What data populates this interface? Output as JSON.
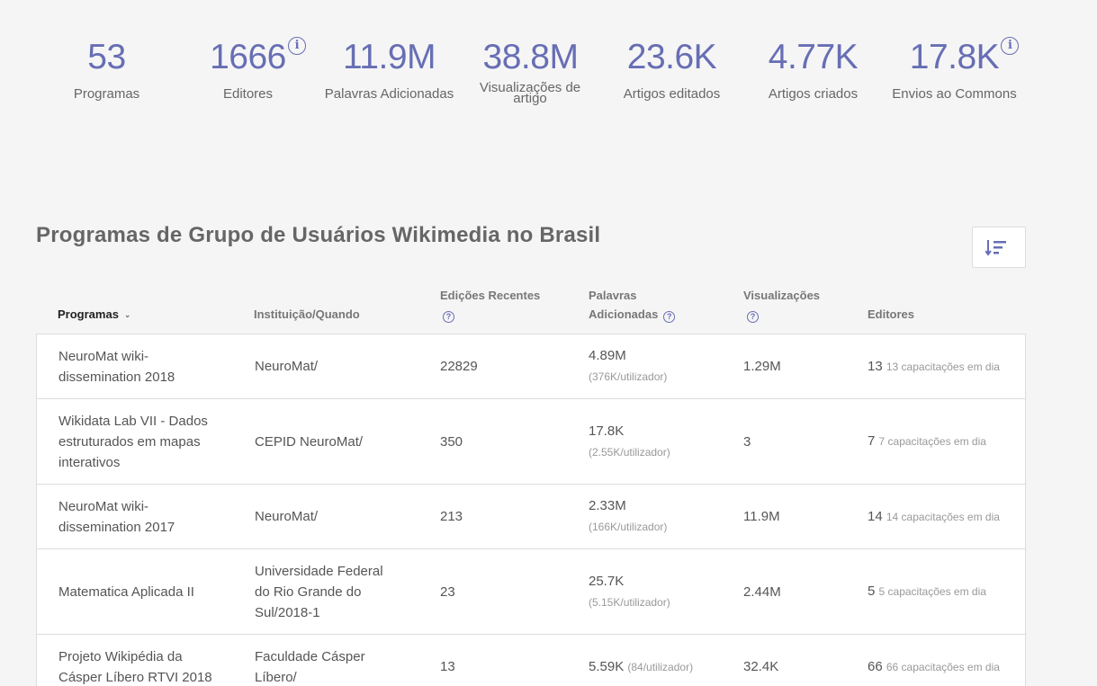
{
  "stats": [
    {
      "value": "53",
      "label": "Programas",
      "info": false
    },
    {
      "value": "1666",
      "label": "Editores",
      "info": true
    },
    {
      "value": "11.9M",
      "label": "Palavras Adicionadas",
      "info": false
    },
    {
      "value": "38.8M",
      "label": "Visualizações de artigo",
      "info": false
    },
    {
      "value": "23.6K",
      "label": "Artigos editados",
      "info": false
    },
    {
      "value": "4.77K",
      "label": "Artigos criados",
      "info": false
    },
    {
      "value": "17.8K",
      "label": "Envios ao Commons",
      "info": true
    }
  ],
  "section_title": "Programas de Grupo de Usuários Wikimedia no Brasil",
  "table": {
    "headers": {
      "programs": "Programas",
      "institution": "Instituição/Quando",
      "recent_edits": "Edições Recentes",
      "words_added_1": "Palavras",
      "words_added_2": "Adicionadas",
      "views": "Visualizações",
      "editors": "Editores"
    },
    "rows": [
      {
        "program": "NeuroMat wiki-dissemination 2018",
        "institution": "NeuroMat/",
        "edits": "22829",
        "words": "4.89M",
        "words_per": "(376K/utilizador)",
        "views": "1.29M",
        "editors": "13",
        "trained": "13 capacitações em dia"
      },
      {
        "program": "Wikidata Lab VII - Dados estruturados em mapas interativos",
        "institution": "CEPID NeuroMat/",
        "edits": "350",
        "words": "17.8K",
        "words_per": "(2.55K/utilizador)",
        "views": "3",
        "editors": "7",
        "trained": "7 capacitações em dia"
      },
      {
        "program": "NeuroMat wiki-dissemination 2017",
        "institution": "NeuroMat/",
        "edits": "213",
        "words": "2.33M",
        "words_per": "(166K/utilizador)",
        "views": "11.9M",
        "editors": "14",
        "trained": "14 capacitações em dia"
      },
      {
        "program": "Matematica Aplicada II",
        "institution": "Universidade Federal do Rio Grande do Sul/2018-1",
        "edits": "23",
        "words": "25.7K",
        "words_per": "(5.15K/utilizador)",
        "views": "2.44M",
        "editors": "5",
        "trained": "5 capacitações em dia"
      },
      {
        "program": "Projeto Wikipédia da Cásper Líbero RTVI 2018",
        "institution": "Faculdade Cásper Líbero/",
        "edits": "13",
        "words": "5.59K",
        "words_per": "(84/utilizador)",
        "views": "32.4K",
        "editors": "66",
        "trained": "66 capacitações em dia"
      }
    ]
  },
  "icons": {
    "info": "info-icon",
    "help": "question-circle-icon",
    "sort": "sort-icon",
    "chevron": "chevron-down-icon"
  },
  "colors": {
    "accent": "#676eb4",
    "background": "#f5f5f5",
    "border": "#dddddd"
  }
}
